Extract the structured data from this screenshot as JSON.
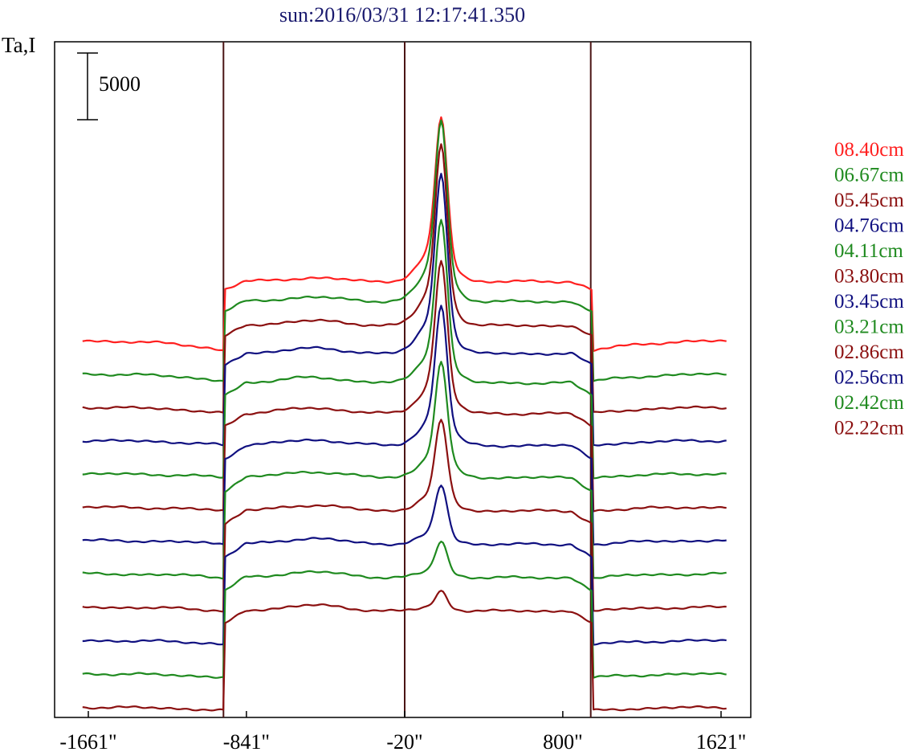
{
  "chart_data": {
    "type": "line",
    "title": "sun:2016/03/31 12:17:41.350",
    "ylabel": "Ta,I",
    "xlabel": "",
    "x_ticks": [
      {
        "value": -1661,
        "label": "-1661\""
      },
      {
        "value": -841,
        "label": "-841\""
      },
      {
        "value": -20,
        "label": "-20\""
      },
      {
        "value": 800,
        "label": "800\""
      },
      {
        "value": 1621,
        "label": "1621\""
      }
    ],
    "xlim": [
      -1661,
      1621
    ],
    "scale_bar": {
      "value": 5000,
      "label": "5000"
    },
    "vertical_markers": [
      -960,
      -20,
      945
    ],
    "series_offset": 2500,
    "ylim": [
      0,
      41500
    ],
    "series": [
      {
        "name": "08.40cm",
        "color": "#ff2020",
        "offset_index": 11,
        "disk": 4400,
        "peak": 10000,
        "edge_dip": 800,
        "noise": 0
      },
      {
        "name": "06.67cm",
        "color": "#1f8a1f",
        "offset_index": 10,
        "disk": 5400,
        "peak": 11000,
        "edge_dip": 600,
        "noise": 1
      },
      {
        "name": "05.45cm",
        "color": "#8b1010",
        "offset_index": 9,
        "disk": 6100,
        "peak": 11000,
        "edge_dip": 500,
        "noise": 2
      },
      {
        "name": "04.76cm",
        "color": "#101080",
        "offset_index": 8,
        "disk": 6500,
        "peak": 11000,
        "edge_dip": 400,
        "noise": 3
      },
      {
        "name": "04.11cm",
        "color": "#1f8a1f",
        "offset_index": 7,
        "disk": 6800,
        "peak": 10000,
        "edge_dip": 300,
        "noise": 4
      },
      {
        "name": "03.80cm",
        "color": "#8b1010",
        "offset_index": 6,
        "disk": 7000,
        "peak": 9300,
        "edge_dip": 300,
        "noise": 5
      },
      {
        "name": "03.45cm",
        "color": "#101080",
        "offset_index": 5,
        "disk": 7100,
        "peak": 8500,
        "edge_dip": 300,
        "noise": 6
      },
      {
        "name": "03.21cm",
        "color": "#1f8a1f",
        "offset_index": 4,
        "disk": 7200,
        "peak": 7000,
        "edge_dip": 300,
        "noise": 7
      },
      {
        "name": "02.86cm",
        "color": "#8b1010",
        "offset_index": 3,
        "disk": 7200,
        "peak": 5500,
        "edge_dip": 300,
        "noise": 8
      },
      {
        "name": "02.56cm",
        "color": "#101080",
        "offset_index": 2,
        "disk": 7200,
        "peak": 3600,
        "edge_dip": 300,
        "noise": 9
      },
      {
        "name": "02.42cm",
        "color": "#1f8a1f",
        "offset_index": 1,
        "disk": 7200,
        "peak": 2200,
        "edge_dip": 300,
        "noise": 10
      },
      {
        "name": "02.22cm",
        "color": "#8b1010",
        "offset_index": 0,
        "disk": 7200,
        "peak": 1200,
        "edge_dip": 300,
        "noise": 11
      }
    ]
  }
}
